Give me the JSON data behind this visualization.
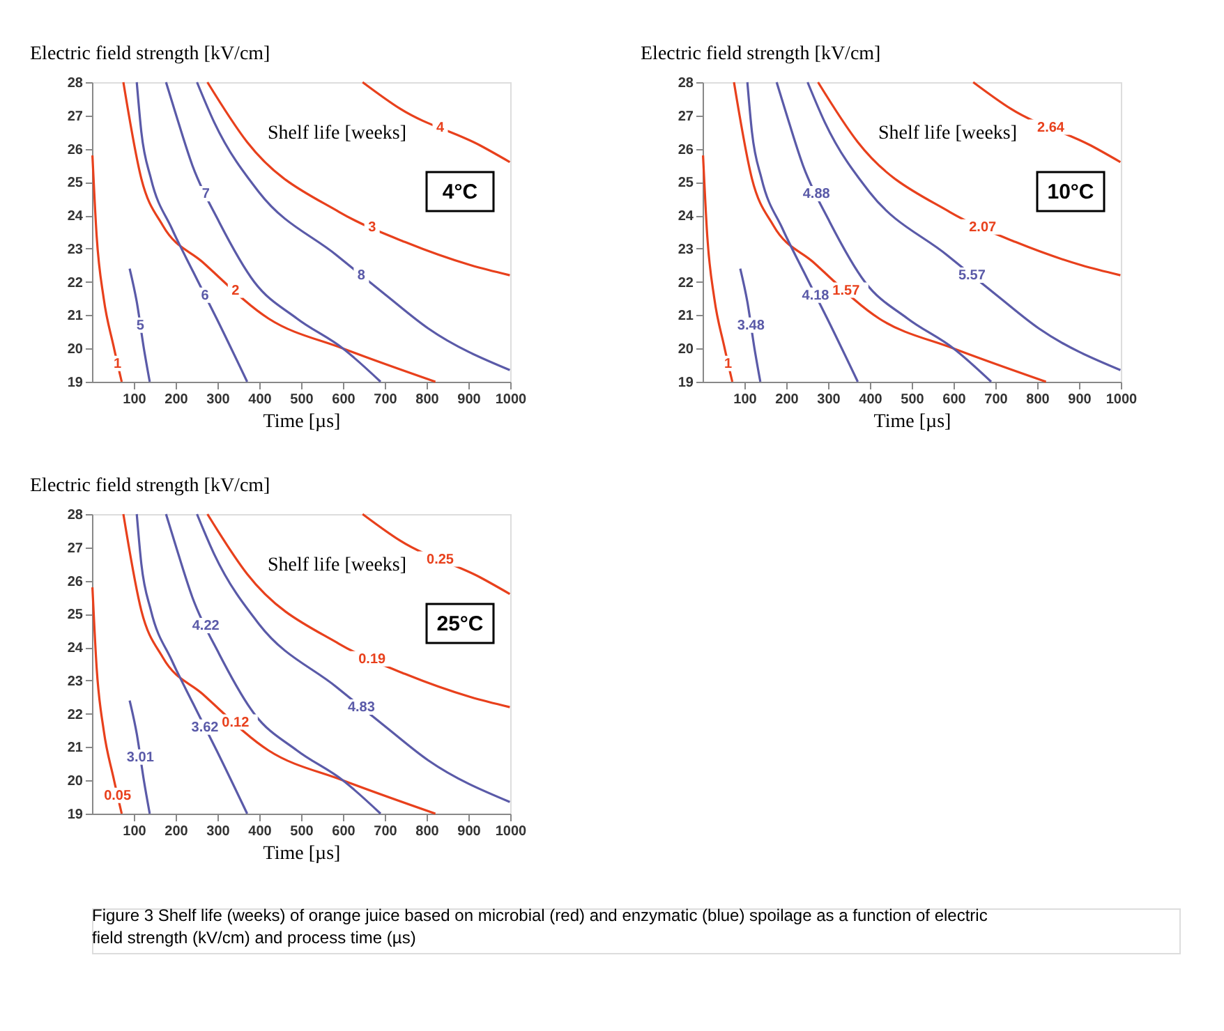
{
  "chart_data": [
    {
      "type": "line",
      "xlabel": "Time [µs]",
      "ylabel": "Electric field strength [kV/cm]",
      "xlim": [
        0,
        1000
      ],
      "ylim": [
        19,
        28
      ],
      "xticks": [
        100,
        200,
        300,
        400,
        500,
        600,
        700,
        800,
        900,
        1000
      ],
      "yticks": [
        19,
        20,
        21,
        22,
        23,
        24,
        25,
        26,
        27,
        28
      ],
      "grid": false,
      "legend": false,
      "marker": "none",
      "line_style": "solid",
      "annotations": [
        "Shelf life [weeks]",
        "4°C"
      ],
      "series": [
        {
          "name": "1",
          "color": "#e8401c",
          "x": [
            1,
            11,
            28,
            51,
            71
          ],
          "values": [
            25.8,
            23.4,
            21.5,
            20.1,
            19
          ]
        },
        {
          "name": "2",
          "color": "#e8401c",
          "x": [
            75,
            118,
            169,
            264,
            422,
            600,
            821
          ],
          "values": [
            28,
            25.1,
            23.7,
            22.6,
            20.9,
            20.0,
            19
          ]
        },
        {
          "name": "3",
          "color": "#e8401c",
          "x": [
            276,
            371,
            591,
            748,
            906,
            999
          ],
          "values": [
            28,
            26.2,
            24.1,
            23.2,
            22.5,
            22.2
          ]
        },
        {
          "name": "4",
          "color": "#e8401c",
          "x": [
            647,
            737,
            928,
            999
          ],
          "values": [
            28,
            27.2,
            26.1,
            25.6
          ]
        },
        {
          "name": "5",
          "color": "#5a5aa8",
          "x": [
            90,
            107,
            124,
            138
          ],
          "values": [
            22.4,
            21.4,
            20.0,
            19
          ]
        },
        {
          "name": "6",
          "color": "#5a5aa8",
          "x": [
            107,
            118,
            141,
            191,
            242,
            298,
            371
          ],
          "values": [
            28,
            26.5,
            25.1,
            23.6,
            22.3,
            20.9,
            19
          ]
        },
        {
          "name": "7",
          "color": "#5a5aa8",
          "x": [
            177,
            199,
            240,
            304,
            388,
            490,
            600,
            690
          ],
          "values": [
            28,
            27.1,
            25.5,
            23.8,
            22.0,
            20.9,
            20.0,
            19
          ]
        },
        {
          "name": "8",
          "color": "#5a5aa8",
          "x": [
            251,
            292,
            399,
            585,
            703,
            804,
            999
          ],
          "values": [
            28,
            26.8,
            24.7,
            22.8,
            21.6,
            20.6,
            19.35
          ]
        }
      ]
    },
    {
      "type": "line",
      "xlabel": "Time [µs]",
      "ylabel": "Electric field strength [kV/cm]",
      "xlim": [
        0,
        1000
      ],
      "ylim": [
        19,
        28
      ],
      "xticks": [
        100,
        200,
        300,
        400,
        500,
        600,
        700,
        800,
        900,
        1000
      ],
      "yticks": [
        19,
        20,
        21,
        22,
        23,
        24,
        25,
        26,
        27,
        28
      ],
      "grid": false,
      "legend": false,
      "marker": "none",
      "line_style": "solid",
      "annotations": [
        "Shelf life [weeks]",
        "10°C"
      ],
      "series": [
        {
          "name": "1",
          "color": "#e8401c",
          "x": [
            1,
            11,
            28,
            51,
            71
          ],
          "values": [
            25.8,
            23.4,
            21.5,
            20.1,
            19
          ]
        },
        {
          "name": "1.57",
          "color": "#e8401c",
          "x": [
            75,
            118,
            169,
            264,
            422,
            600,
            821
          ],
          "values": [
            28,
            25.1,
            23.7,
            22.6,
            20.9,
            20.0,
            19
          ]
        },
        {
          "name": "2.07",
          "color": "#e8401c",
          "x": [
            276,
            371,
            591,
            748,
            906,
            999
          ],
          "values": [
            28,
            26.2,
            24.1,
            23.2,
            22.5,
            22.2
          ]
        },
        {
          "name": "2.64",
          "color": "#e8401c",
          "x": [
            647,
            737,
            928,
            999
          ],
          "values": [
            28,
            27.2,
            26.1,
            25.6
          ]
        },
        {
          "name": "3.48",
          "color": "#5a5aa8",
          "x": [
            90,
            107,
            124,
            138
          ],
          "values": [
            22.4,
            21.4,
            20.0,
            19
          ]
        },
        {
          "name": "4.18",
          "color": "#5a5aa8",
          "x": [
            107,
            118,
            141,
            191,
            242,
            298,
            371
          ],
          "values": [
            28,
            26.5,
            25.1,
            23.6,
            22.3,
            20.9,
            19
          ]
        },
        {
          "name": "4.88",
          "color": "#5a5aa8",
          "x": [
            177,
            199,
            240,
            304,
            388,
            490,
            600,
            690
          ],
          "values": [
            28,
            27.1,
            25.5,
            23.8,
            22.0,
            20.9,
            20.0,
            19
          ]
        },
        {
          "name": "5.57",
          "color": "#5a5aa8",
          "x": [
            251,
            292,
            399,
            585,
            703,
            804,
            999
          ],
          "values": [
            28,
            26.8,
            24.7,
            22.8,
            21.6,
            20.6,
            19.35
          ]
        }
      ]
    },
    {
      "type": "line",
      "xlabel": "Time [µs]",
      "ylabel": "Electric field strength [kV/cm]",
      "xlim": [
        0,
        1000
      ],
      "ylim": [
        19,
        28
      ],
      "xticks": [
        100,
        200,
        300,
        400,
        500,
        600,
        700,
        800,
        900,
        1000
      ],
      "yticks": [
        19,
        20,
        21,
        22,
        23,
        24,
        25,
        26,
        27,
        28
      ],
      "grid": false,
      "legend": false,
      "marker": "none",
      "line_style": "solid",
      "annotations": [
        "Shelf life [weeks]",
        "25°C",
        "Figure 3 Shelf life (weeks) of orange juice based on microbial (red) and enzymatic (blue) spoilage as a function of electric field strength (kV/cm) and process time (µs)"
      ],
      "series": [
        {
          "name": "0.05",
          "color": "#e8401c",
          "x": [
            1,
            11,
            28,
            51,
            71
          ],
          "values": [
            25.8,
            23.4,
            21.5,
            20.1,
            19
          ]
        },
        {
          "name": "0.12",
          "color": "#e8401c",
          "x": [
            75,
            118,
            169,
            264,
            422,
            600,
            821
          ],
          "values": [
            28,
            25.1,
            23.7,
            22.6,
            20.9,
            20.0,
            19
          ]
        },
        {
          "name": "0.19",
          "color": "#e8401c",
          "x": [
            276,
            371,
            591,
            748,
            906,
            999
          ],
          "values": [
            28,
            26.2,
            24.1,
            23.2,
            22.5,
            22.2
          ]
        },
        {
          "name": "0.25",
          "color": "#e8401c",
          "x": [
            647,
            737,
            928,
            999
          ],
          "values": [
            28,
            27.2,
            26.1,
            25.6
          ]
        },
        {
          "name": "3.01",
          "color": "#5a5aa8",
          "x": [
            90,
            107,
            124,
            138
          ],
          "values": [
            22.4,
            21.4,
            20.0,
            19
          ]
        },
        {
          "name": "3.62",
          "color": "#5a5aa8",
          "x": [
            107,
            118,
            141,
            191,
            242,
            298,
            371
          ],
          "values": [
            28,
            26.5,
            25.1,
            23.6,
            22.3,
            20.9,
            19
          ]
        },
        {
          "name": "4.22",
          "color": "#5a5aa8",
          "x": [
            177,
            199,
            240,
            304,
            388,
            490,
            600,
            690
          ],
          "values": [
            28,
            27.1,
            25.5,
            23.8,
            22.0,
            20.9,
            20.0,
            19
          ]
        },
        {
          "name": "4.83",
          "color": "#5a5aa8",
          "x": [
            251,
            292,
            399,
            585,
            703,
            804,
            999
          ],
          "values": [
            28,
            26.8,
            24.7,
            22.8,
            21.6,
            20.6,
            19.35
          ]
        }
      ]
    }
  ]
}
